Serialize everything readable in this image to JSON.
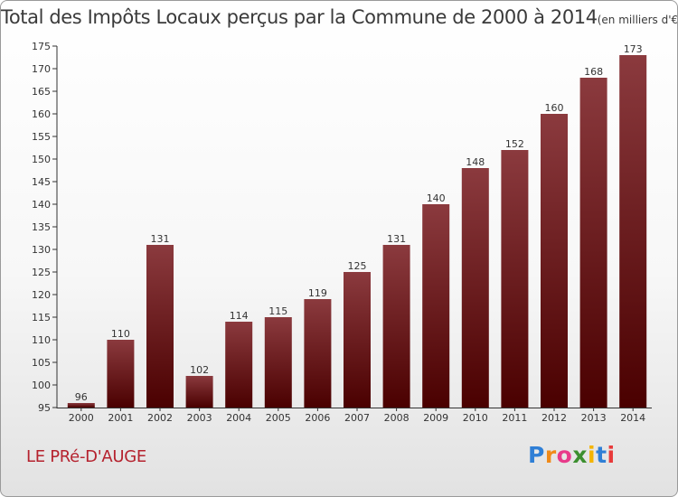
{
  "page": {
    "commune": "LE PRé-D'AUGE",
    "logo_letters": [
      {
        "ch": "P",
        "color": "#2f7fd6"
      },
      {
        "ch": "r",
        "color": "#f08a18"
      },
      {
        "ch": "o",
        "color": "#e83a8a"
      },
      {
        "ch": "x",
        "color": "#3c8f2f"
      },
      {
        "ch": "i",
        "color": "#f4b400"
      },
      {
        "ch": "t",
        "color": "#2f7fd6"
      },
      {
        "ch": "i",
        "color": "#e83a3a"
      }
    ]
  },
  "chart_data": {
    "type": "bar",
    "title": "Total des Impôts Locaux perçus par la Commune de 2000 à 2014",
    "unit_label": "(en milliers d'€)",
    "categories": [
      "2000",
      "2001",
      "2002",
      "2003",
      "2004",
      "2005",
      "2006",
      "2007",
      "2008",
      "2009",
      "2010",
      "2011",
      "2012",
      "2013",
      "2014"
    ],
    "values": [
      96,
      110,
      131,
      102,
      114,
      115,
      119,
      125,
      131,
      140,
      148,
      152,
      160,
      168,
      173
    ],
    "ylim": [
      95,
      175
    ],
    "yticks": [
      95,
      100,
      105,
      110,
      115,
      120,
      125,
      130,
      135,
      140,
      145,
      150,
      155,
      160,
      165,
      170,
      175
    ],
    "grid": false,
    "bar_color_top": "#8b3a3e",
    "bar_color_bottom": "#4a0000"
  }
}
